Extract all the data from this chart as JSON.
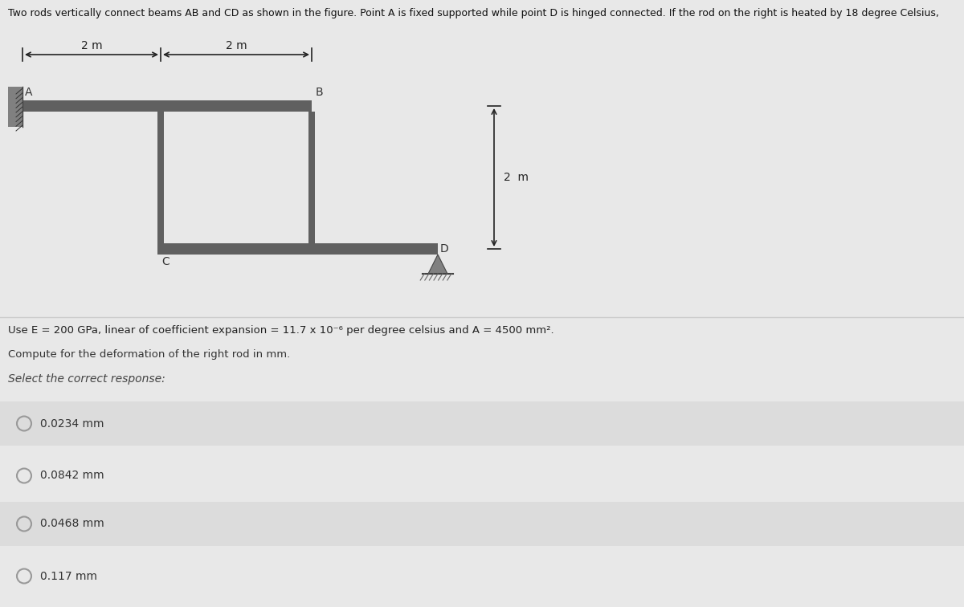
{
  "title_text": "Two rods vertically connect beams AB and CD as shown in the figure. Point A is fixed supported while point D is hinged connected. If the rod on the right is heated by 18 degree Celsius,",
  "bg_color": "#e8e8e8",
  "beam_color": "#606060",
  "rod_color": "#606060",
  "wall_color": "#808080",
  "hinge_color": "#808080",
  "label_A": "A",
  "label_B": "B",
  "label_C": "C",
  "label_D": "D",
  "dim_2m_1": "2 m",
  "dim_2m_2": "2 m",
  "dim_2m_vert": "2  m",
  "use_text": "Use E = 200 GPa, linear of coefficient expansion = 11.7 x 10⁻⁶ per degree celsius and A = 4500 mm².",
  "compute_text": "Compute for the deformation of the right rod in mm.",
  "select_text": "Select the correct response:",
  "options": [
    "0.0234 mm",
    "0.0842 mm",
    "0.0468 mm",
    "0.117 mm"
  ],
  "title_fontsize": 9,
  "label_fontsize": 10,
  "dim_fontsize": 10,
  "use_fontsize": 9.5,
  "compute_fontsize": 9.5,
  "select_fontsize": 10,
  "option_fontsize": 10
}
